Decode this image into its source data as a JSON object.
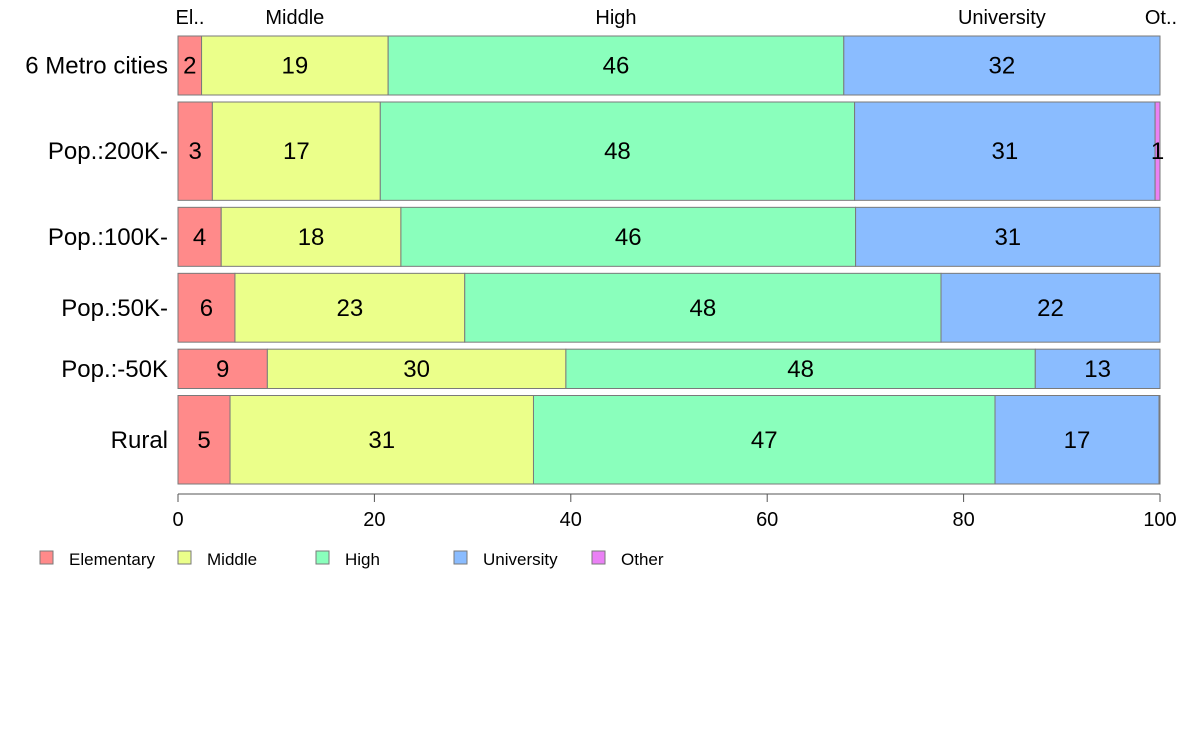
{
  "chart_data": {
    "type": "bar",
    "orientation": "horizontal",
    "stacked": true,
    "categories": [
      "6 Metro cities",
      "Pop.:200K-",
      "Pop.:100K-",
      "Pop.:50K-",
      "Pop.:-50K",
      "Rural"
    ],
    "bar_weights": [
      6,
      10,
      6,
      7,
      4,
      9
    ],
    "series": [
      {
        "name": "Elementary",
        "color": "#ff8a8a",
        "values": [
          2.4,
          3.5,
          4.4,
          5.8,
          9.1,
          5.3
        ],
        "labels": [
          "2",
          "3",
          "4",
          "6",
          "9",
          "5"
        ]
      },
      {
        "name": "Middle",
        "color": "#ebff8a",
        "values": [
          19.0,
          17.1,
          18.3,
          23.4,
          30.4,
          30.9
        ],
        "labels": [
          "19",
          "17",
          "18",
          "23",
          "30",
          "31"
        ]
      },
      {
        "name": "High",
        "color": "#8affbc",
        "values": [
          46.4,
          48.3,
          46.3,
          48.5,
          47.8,
          47.0
        ],
        "labels": [
          "46",
          "48",
          "46",
          "48",
          "48",
          "47"
        ]
      },
      {
        "name": "University",
        "color": "#8abcff",
        "values": [
          32.2,
          30.6,
          31.0,
          22.3,
          12.7,
          16.7
        ],
        "labels": [
          "32",
          "31",
          "31",
          "22",
          "13",
          "17"
        ]
      },
      {
        "name": "Other",
        "color": "#ea80f5",
        "values": [
          0.0,
          0.5,
          0.0,
          0.0,
          0.0,
          0.1
        ],
        "labels": [
          "",
          "1",
          "",
          "",
          "",
          ""
        ]
      }
    ],
    "top_labels": [
      "El..",
      "Middle",
      "High",
      "University",
      "Ot.."
    ],
    "xlim": [
      0,
      100
    ],
    "x_ticks": [
      0,
      20,
      40,
      60,
      80,
      100
    ],
    "xlabel": "",
    "ylabel": "",
    "title": "",
    "grid": false,
    "legend_position": "bottom-left"
  }
}
